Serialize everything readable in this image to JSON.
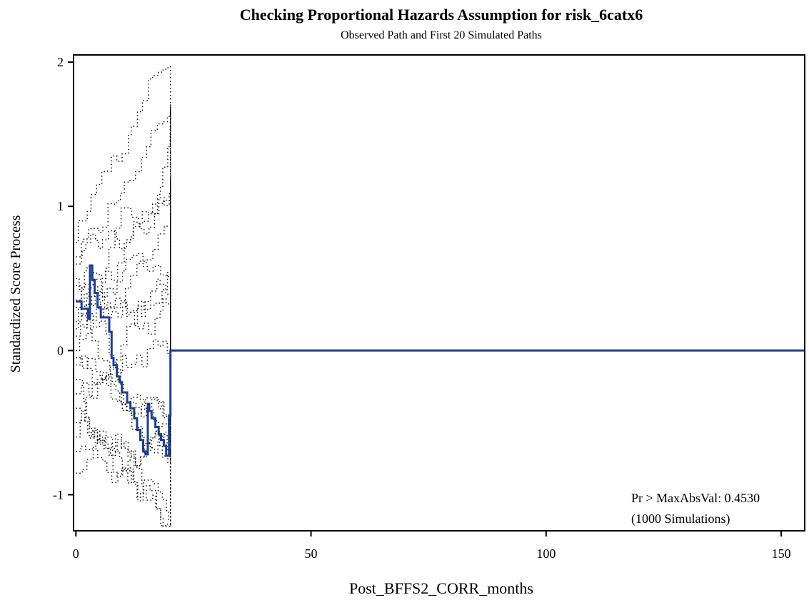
{
  "chart_data": {
    "type": "line",
    "title": "Checking Proportional Hazards Assumption for risk_6catx6",
    "subtitle": "Observed Path and First 20 Simulated Paths",
    "xlabel": "Post_BFFS2_CORR_months",
    "ylabel": "Standardized Score Process",
    "xlim": [
      -0.5,
      155
    ],
    "ylim": [
      -1.25,
      2.05
    ],
    "xticks": [
      0,
      50,
      100,
      150
    ],
    "yticks": [
      -1,
      0,
      1,
      2
    ],
    "xtick_labels": [
      "0",
      "50",
      "100",
      "150"
    ],
    "ytick_labels": [
      "-1",
      "0",
      "1",
      "2"
    ],
    "grid": false,
    "annotation": [
      "Pr > MaxAbsVal: 0.4530",
      "(1000 Simulations)"
    ],
    "series": [
      {
        "style": "solid",
        "color": "#1b3f8b",
        "x": [
          0,
          1.2,
          1.2,
          2.6,
          2.6,
          3.0,
          3.0,
          3.5,
          3.5,
          4.0,
          4.0,
          4.6,
          4.6,
          5.3,
          5.3,
          7.1,
          7.1,
          7.6,
          7.6,
          8.0,
          8.0,
          8.7,
          8.7,
          9.3,
          9.3,
          9.8,
          9.8,
          10.9,
          10.9,
          11.6,
          11.6,
          12.4,
          12.4,
          13.0,
          13.0,
          13.7,
          13.7,
          14.3,
          14.3,
          14.8,
          14.8,
          15.3,
          15.3,
          15.6,
          15.6,
          16.1,
          16.1,
          16.9,
          16.9,
          17.6,
          17.6,
          18.1,
          18.1,
          18.7,
          18.7,
          19.2,
          19.2,
          19.8,
          19.8,
          20.1,
          20.1,
          155
        ],
        "y": [
          0.34,
          0.34,
          0.29,
          0.29,
          0.22,
          0.22,
          0.59,
          0.59,
          0.49,
          0.49,
          0.4,
          0.4,
          0.3,
          0.3,
          0.23,
          0.23,
          0.13,
          0.13,
          -0.05,
          -0.05,
          -0.1,
          -0.1,
          -0.18,
          -0.18,
          -0.22,
          -0.22,
          -0.29,
          -0.29,
          -0.36,
          -0.36,
          -0.4,
          -0.4,
          -0.47,
          -0.47,
          -0.55,
          -0.55,
          -0.62,
          -0.62,
          -0.7,
          -0.7,
          -0.72,
          -0.72,
          -0.37,
          -0.37,
          -0.42,
          -0.42,
          -0.47,
          -0.47,
          -0.53,
          -0.53,
          -0.58,
          -0.58,
          -0.62,
          -0.62,
          -0.66,
          -0.66,
          -0.73,
          -0.73,
          -0.45,
          -0.45,
          0.0,
          0.0
        ]
      }
    ]
  }
}
